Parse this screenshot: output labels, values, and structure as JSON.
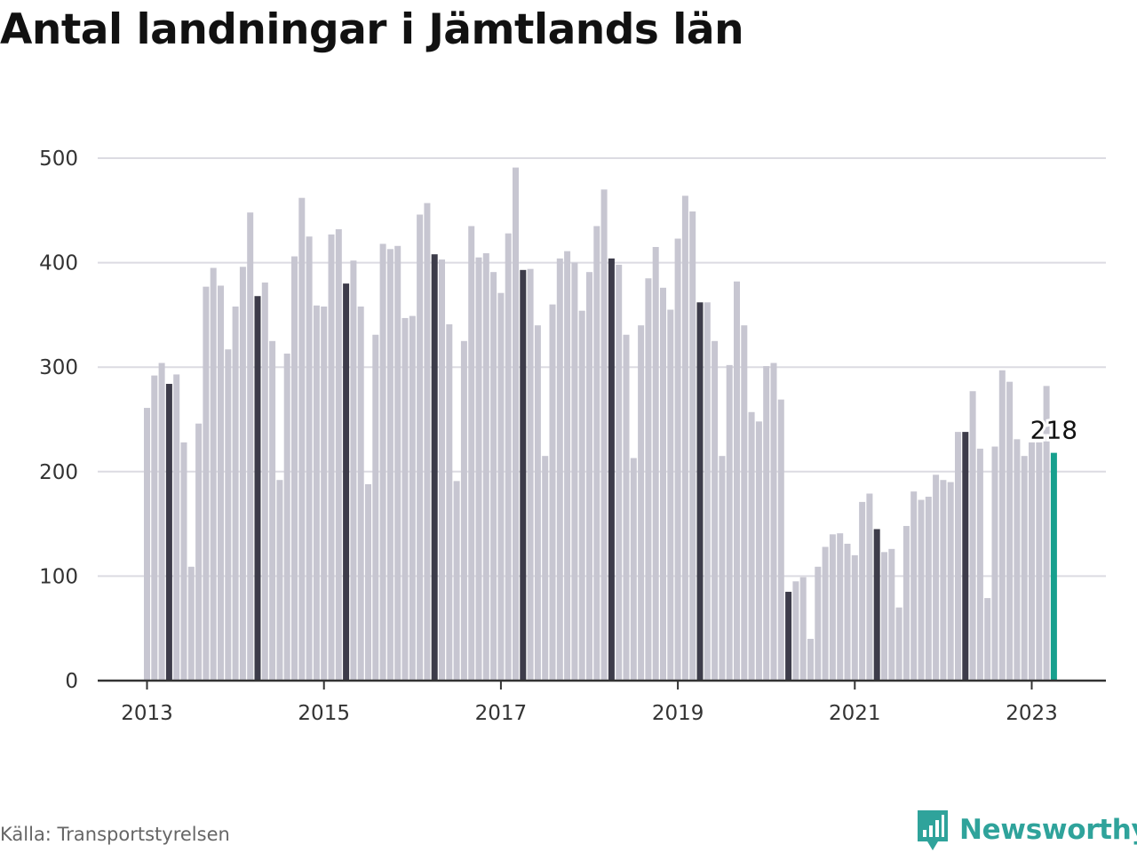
{
  "chart_data": {
    "type": "bar",
    "title": "Antal landningar i Jämtlands län",
    "xlabel": "",
    "ylabel": "",
    "ylim": [
      0,
      500
    ],
    "y_ticks": [
      "0",
      "100",
      "200",
      "300",
      "400",
      "500"
    ],
    "x_ticks": [
      "2013",
      "2015",
      "2017",
      "2019",
      "2021",
      "2023"
    ],
    "grid": true,
    "period": {
      "start": "2013-01",
      "end": "2023-04",
      "frequency": "monthly"
    },
    "highlight_month": "April",
    "highlight_color": "#3d3c4a",
    "bar_color": "#c7c6d1",
    "last_bar_color": "#17a08e",
    "last_value_label": "218",
    "values": [
      261,
      292,
      304,
      284,
      293,
      228,
      109,
      246,
      377,
      395,
      378,
      317,
      358,
      396,
      448,
      368,
      381,
      325,
      192,
      313,
      406,
      462,
      425,
      359,
      358,
      427,
      432,
      380,
      402,
      358,
      188,
      331,
      418,
      413,
      416,
      347,
      349,
      446,
      457,
      408,
      403,
      341,
      191,
      325,
      435,
      405,
      409,
      391,
      371,
      428,
      491,
      393,
      394,
      340,
      215,
      360,
      404,
      411,
      400,
      354,
      391,
      435,
      470,
      404,
      398,
      331,
      213,
      340,
      385,
      415,
      376,
      355,
      423,
      464,
      449,
      362,
      362,
      325,
      215,
      302,
      382,
      340,
      257,
      248,
      301,
      304,
      269,
      85,
      95,
      99,
      40,
      109,
      128,
      140,
      141,
      131,
      120,
      171,
      179,
      145,
      123,
      126,
      70,
      148,
      181,
      173,
      176,
      197,
      192,
      190,
      238,
      238,
      277,
      222,
      79,
      224,
      297,
      286,
      231,
      215,
      228,
      228,
      282,
      218
    ]
  },
  "source": "Källa: Transportstyrelsen",
  "brand": {
    "name": "Newsworthy",
    "icon": "bar-chart-speech-bubble-icon",
    "color": "#2fa39b"
  }
}
